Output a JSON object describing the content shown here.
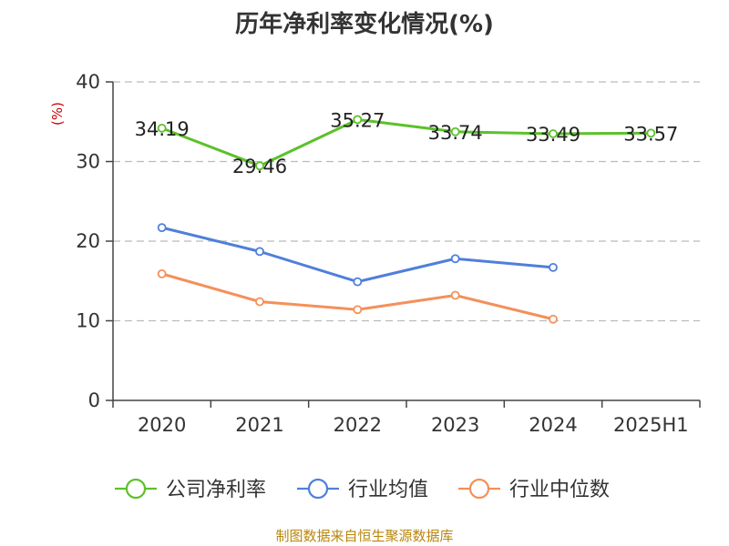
{
  "chart_data": {
    "type": "line",
    "title": "历年净利率变化情况(%)",
    "ylabel": "(%)",
    "categories": [
      "2020",
      "2021",
      "2022",
      "2023",
      "2024",
      "2025H1"
    ],
    "ylim": [
      0,
      40
    ],
    "yticks": [
      0,
      10,
      20,
      30,
      40
    ],
    "grid": true,
    "legend_position": "bottom",
    "series": [
      {
        "name": "公司净利率",
        "color": "#5cc12b",
        "values": [
          34.19,
          29.46,
          35.27,
          33.74,
          33.49,
          33.57
        ],
        "show_labels": true
      },
      {
        "name": "行业均值",
        "color": "#4f7fdb",
        "values": [
          21.7,
          18.7,
          14.9,
          17.8,
          16.7,
          null
        ],
        "show_labels": false
      },
      {
        "name": "行业中位数",
        "color": "#f4905a",
        "values": [
          15.9,
          12.4,
          11.4,
          13.2,
          10.2,
          null
        ],
        "show_labels": false
      }
    ],
    "source": "制图数据来自恒生聚源数据库"
  }
}
